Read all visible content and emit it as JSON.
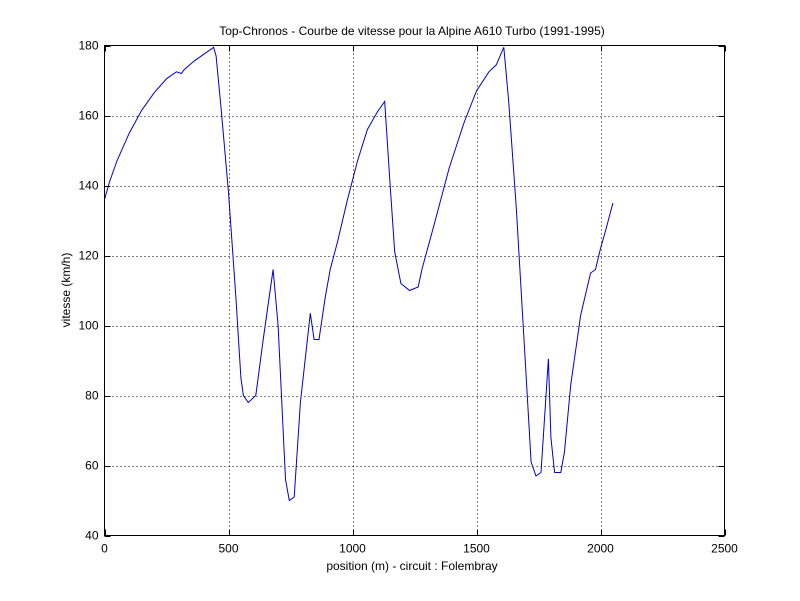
{
  "chart_data": {
    "type": "line",
    "title": "Top-Chronos - Courbe de vitesse pour la Alpine A610 Turbo (1991-1995)",
    "xlabel": "position (m) - circuit : Folembray",
    "ylabel": "vitesse (km/h)",
    "xlim": [
      0,
      2500
    ],
    "ylim": [
      40,
      180
    ],
    "xticks": [
      0,
      500,
      1000,
      1500,
      2000,
      2500
    ],
    "yticks": [
      40,
      60,
      80,
      100,
      120,
      140,
      160,
      180
    ],
    "xtick_labels": [
      "0",
      "500",
      "1000",
      "1500",
      "2000",
      "2500"
    ],
    "ytick_labels": [
      "40",
      "60",
      "80",
      "100",
      "120",
      "140",
      "160",
      "180"
    ],
    "grid": true,
    "series": [
      {
        "color": "#0000cc",
        "x": [
          0,
          20,
          50,
          100,
          150,
          200,
          250,
          290,
          310,
          320,
          360,
          400,
          440,
          450,
          470,
          500,
          530,
          550,
          560,
          580,
          610,
          640,
          680,
          700,
          730,
          745,
          765,
          790,
          830,
          845,
          865,
          890,
          910,
          940,
          980,
          1020,
          1060,
          1100,
          1130,
          1150,
          1170,
          1195,
          1230,
          1265,
          1280,
          1330,
          1390,
          1450,
          1500,
          1550,
          1580,
          1610,
          1630,
          1660,
          1690,
          1720,
          1740,
          1760,
          1790,
          1800,
          1815,
          1840,
          1855,
          1880,
          1920,
          1960,
          1980,
          2000,
          2020,
          2050
        ],
        "y": [
          136,
          141,
          147,
          155,
          161.5,
          166.5,
          170.5,
          172.5,
          172,
          173,
          175.5,
          177.5,
          179.5,
          177,
          162,
          138,
          108,
          85,
          80,
          78,
          80,
          96,
          116,
          100,
          56,
          50,
          51,
          78,
          103.5,
          96,
          96,
          108,
          116,
          124,
          136,
          147,
          156,
          161,
          164,
          142,
          121,
          112,
          110,
          111,
          116,
          129,
          145,
          158,
          167,
          172.5,
          174.5,
          179.5,
          164,
          134,
          98,
          61,
          57,
          58,
          90.5,
          68,
          58,
          58,
          64,
          83,
          103,
          115,
          116,
          122,
          127,
          135
        ]
      }
    ]
  }
}
